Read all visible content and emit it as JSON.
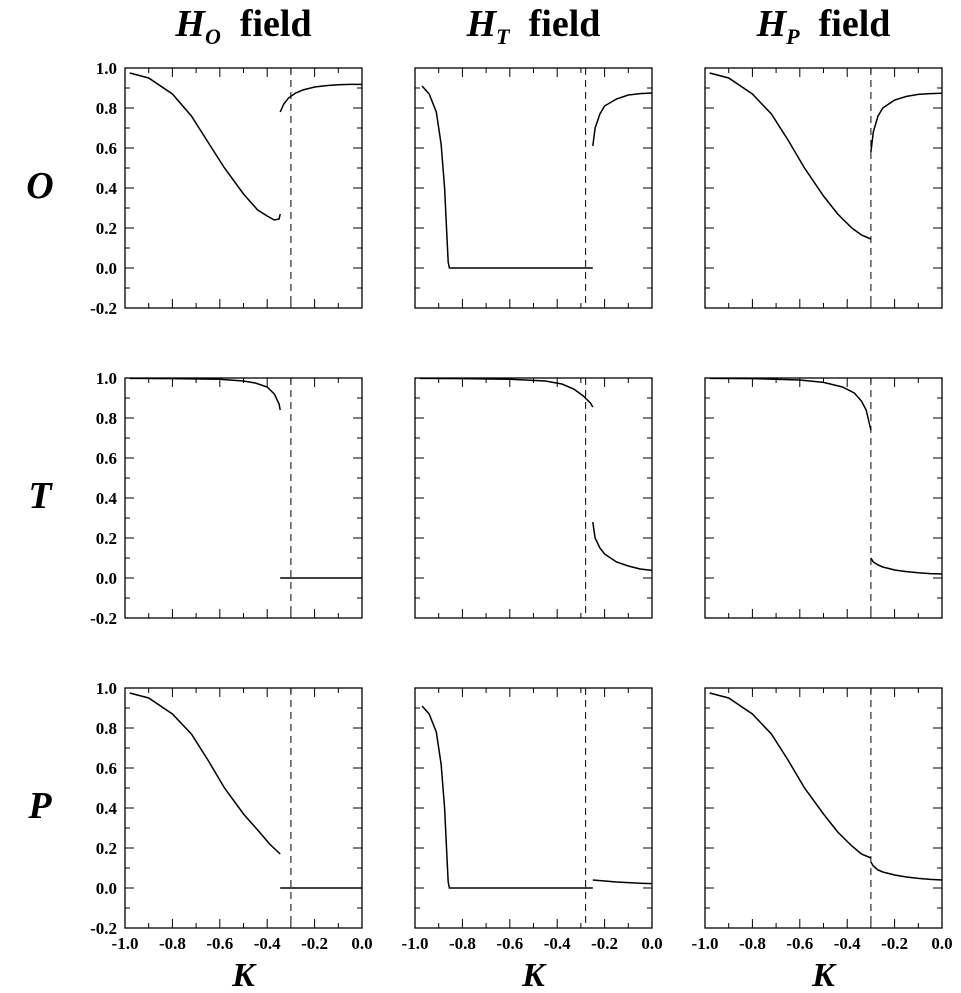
{
  "figure": {
    "column_titles": [
      {
        "main": "H",
        "sub": "O",
        "suffix": "field"
      },
      {
        "main": "H",
        "sub": "T",
        "suffix": "field"
      },
      {
        "main": "H",
        "sub": "P",
        "suffix": "field"
      }
    ],
    "row_labels": [
      "O",
      "T",
      "P"
    ],
    "x_axis_label": "K"
  },
  "chart_data": [
    {
      "type": "line",
      "row": "O",
      "column": "H_O field",
      "xlim": [
        -1.0,
        0.0
      ],
      "ylim": [
        -0.2,
        1.0
      ],
      "x_ticks": [
        "-1.0",
        "-0.8",
        "-0.6",
        "-0.4",
        "-0.2",
        "0.0"
      ],
      "y_ticks": [
        "-0.2",
        "0.0",
        "0.2",
        "0.4",
        "0.6",
        "0.8",
        "1.0"
      ],
      "dashed_vline_x": -0.3,
      "series": [
        {
          "x": [
            -0.98,
            -0.9,
            -0.8,
            -0.72,
            -0.65,
            -0.58,
            -0.5,
            -0.44,
            -0.4,
            -0.37,
            -0.35,
            -0.345
          ],
          "y": [
            0.975,
            0.95,
            0.87,
            0.76,
            0.63,
            0.5,
            0.37,
            0.29,
            0.26,
            0.24,
            0.245,
            0.27
          ]
        },
        {
          "x": [
            -0.345,
            -0.33,
            -0.31,
            -0.28,
            -0.25,
            -0.2,
            -0.15,
            -0.1,
            -0.05,
            0.0
          ],
          "y": [
            0.78,
            0.82,
            0.85,
            0.875,
            0.89,
            0.905,
            0.912,
            0.916,
            0.918,
            0.918
          ]
        }
      ]
    },
    {
      "type": "line",
      "row": "O",
      "column": "H_T field",
      "xlim": [
        -1.0,
        0.0
      ],
      "ylim": [
        -0.2,
        1.0
      ],
      "x_ticks": [
        "-1.0",
        "-0.8",
        "-0.6",
        "-0.4",
        "-0.2",
        "0.0"
      ],
      "y_ticks": [
        "-0.2",
        "0.0",
        "0.2",
        "0.4",
        "0.6",
        "0.8",
        "1.0"
      ],
      "dashed_vline_x": -0.28,
      "series": [
        {
          "x": [
            -0.97,
            -0.94,
            -0.91,
            -0.89,
            -0.875,
            -0.865,
            -0.86,
            -0.855,
            -0.8,
            -0.6,
            -0.4,
            -0.25
          ],
          "y": [
            0.91,
            0.87,
            0.78,
            0.62,
            0.4,
            0.15,
            0.03,
            0.0,
            0.0,
            0.0,
            0.0,
            0.0
          ]
        },
        {
          "x": [
            -0.25,
            -0.24,
            -0.22,
            -0.2,
            -0.15,
            -0.1,
            -0.05,
            0.0
          ],
          "y": [
            0.61,
            0.7,
            0.77,
            0.81,
            0.845,
            0.865,
            0.872,
            0.875
          ]
        }
      ]
    },
    {
      "type": "line",
      "row": "O",
      "column": "H_P field",
      "xlim": [
        -1.0,
        0.0
      ],
      "ylim": [
        -0.2,
        1.0
      ],
      "x_ticks": [
        "-1.0",
        "-0.8",
        "-0.6",
        "-0.4",
        "-0.2",
        "0.0"
      ],
      "y_ticks": [
        "-0.2",
        "0.0",
        "0.2",
        "0.4",
        "0.6",
        "0.8",
        "1.0"
      ],
      "dashed_vline_x": -0.3,
      "series": [
        {
          "x": [
            -0.98,
            -0.9,
            -0.8,
            -0.72,
            -0.65,
            -0.58,
            -0.5,
            -0.44,
            -0.38,
            -0.34,
            -0.3
          ],
          "y": [
            0.975,
            0.95,
            0.87,
            0.77,
            0.64,
            0.5,
            0.36,
            0.27,
            0.2,
            0.165,
            0.145
          ]
        },
        {
          "x": [
            -0.3,
            -0.29,
            -0.27,
            -0.25,
            -0.2,
            -0.15,
            -0.1,
            -0.05,
            0.0
          ],
          "y": [
            0.58,
            0.68,
            0.76,
            0.8,
            0.84,
            0.858,
            0.868,
            0.872,
            0.874
          ]
        }
      ]
    },
    {
      "type": "line",
      "row": "T",
      "column": "H_O field",
      "xlim": [
        -1.0,
        0.0
      ],
      "ylim": [
        -0.2,
        1.0
      ],
      "x_ticks": [
        "-1.0",
        "-0.8",
        "-0.6",
        "-0.4",
        "-0.2",
        "0.0"
      ],
      "y_ticks": [
        "-0.2",
        "0.0",
        "0.2",
        "0.4",
        "0.6",
        "0.8",
        "1.0"
      ],
      "dashed_vline_x": -0.3,
      "series": [
        {
          "x": [
            -0.98,
            -0.8,
            -0.6,
            -0.5,
            -0.45,
            -0.4,
            -0.37,
            -0.35,
            -0.345
          ],
          "y": [
            0.998,
            0.997,
            0.994,
            0.985,
            0.975,
            0.955,
            0.92,
            0.87,
            0.84
          ]
        },
        {
          "x": [
            -0.345,
            -0.2,
            0.0
          ],
          "y": [
            0.0,
            0.0,
            0.0
          ]
        }
      ]
    },
    {
      "type": "line",
      "row": "T",
      "column": "H_T field",
      "xlim": [
        -1.0,
        0.0
      ],
      "ylim": [
        -0.2,
        1.0
      ],
      "x_ticks": [
        "-1.0",
        "-0.8",
        "-0.6",
        "-0.4",
        "-0.2",
        "0.0"
      ],
      "y_ticks": [
        "-0.2",
        "0.0",
        "0.2",
        "0.4",
        "0.6",
        "0.8",
        "1.0"
      ],
      "dashed_vline_x": -0.28,
      "series": [
        {
          "x": [
            -0.98,
            -0.8,
            -0.6,
            -0.45,
            -0.38,
            -0.33,
            -0.29,
            -0.26,
            -0.25
          ],
          "y": [
            0.998,
            0.997,
            0.994,
            0.985,
            0.97,
            0.945,
            0.91,
            0.875,
            0.855
          ]
        },
        {
          "x": [
            -0.25,
            -0.24,
            -0.22,
            -0.2,
            -0.15,
            -0.1,
            -0.05,
            0.0
          ],
          "y": [
            0.28,
            0.2,
            0.15,
            0.12,
            0.08,
            0.06,
            0.045,
            0.038
          ]
        }
      ]
    },
    {
      "type": "line",
      "row": "T",
      "column": "H_P field",
      "xlim": [
        -1.0,
        0.0
      ],
      "ylim": [
        -0.2,
        1.0
      ],
      "x_ticks": [
        "-1.0",
        "-0.8",
        "-0.6",
        "-0.4",
        "-0.2",
        "0.0"
      ],
      "y_ticks": [
        "-0.2",
        "0.0",
        "0.2",
        "0.4",
        "0.6",
        "0.8",
        "1.0"
      ],
      "dashed_vline_x": -0.3,
      "series": [
        {
          "x": [
            -0.98,
            -0.8,
            -0.6,
            -0.5,
            -0.42,
            -0.37,
            -0.34,
            -0.32,
            -0.31,
            -0.3
          ],
          "y": [
            0.998,
            0.997,
            0.99,
            0.978,
            0.955,
            0.925,
            0.885,
            0.84,
            0.79,
            0.74
          ]
        },
        {
          "x": [
            -0.3,
            -0.29,
            -0.27,
            -0.25,
            -0.2,
            -0.15,
            -0.1,
            -0.05,
            0.0
          ],
          "y": [
            0.1,
            0.08,
            0.065,
            0.055,
            0.04,
            0.032,
            0.026,
            0.022,
            0.02
          ]
        }
      ]
    },
    {
      "type": "line",
      "row": "P",
      "column": "H_O field",
      "xlim": [
        -1.0,
        0.0
      ],
      "ylim": [
        -0.2,
        1.0
      ],
      "x_ticks": [
        "-1.0",
        "-0.8",
        "-0.6",
        "-0.4",
        "-0.2",
        "0.0"
      ],
      "y_ticks": [
        "-0.2",
        "0.0",
        "0.2",
        "0.4",
        "0.6",
        "0.8",
        "1.0"
      ],
      "dashed_vline_x": -0.3,
      "series": [
        {
          "x": [
            -0.98,
            -0.9,
            -0.8,
            -0.72,
            -0.65,
            -0.58,
            -0.5,
            -0.44,
            -0.39,
            -0.345
          ],
          "y": [
            0.975,
            0.95,
            0.87,
            0.77,
            0.64,
            0.5,
            0.37,
            0.29,
            0.22,
            0.17
          ]
        },
        {
          "x": [
            -0.345,
            -0.2,
            0.0
          ],
          "y": [
            0.0,
            0.0,
            0.0
          ]
        }
      ]
    },
    {
      "type": "line",
      "row": "P",
      "column": "H_T field",
      "xlim": [
        -1.0,
        0.0
      ],
      "ylim": [
        -0.2,
        1.0
      ],
      "x_ticks": [
        "-1.0",
        "-0.8",
        "-0.6",
        "-0.4",
        "-0.2",
        "0.0"
      ],
      "y_ticks": [
        "-0.2",
        "0.0",
        "0.2",
        "0.4",
        "0.6",
        "0.8",
        "1.0"
      ],
      "dashed_vline_x": -0.28,
      "series": [
        {
          "x": [
            -0.97,
            -0.94,
            -0.91,
            -0.89,
            -0.875,
            -0.865,
            -0.86,
            -0.855,
            -0.8,
            -0.6,
            -0.4,
            -0.25
          ],
          "y": [
            0.91,
            0.87,
            0.78,
            0.62,
            0.4,
            0.15,
            0.03,
            0.0,
            0.0,
            0.0,
            0.0,
            0.0
          ]
        },
        {
          "x": [
            -0.25,
            -0.2,
            -0.15,
            -0.1,
            -0.05,
            0.0
          ],
          "y": [
            0.04,
            0.035,
            0.03,
            0.027,
            0.024,
            0.022
          ]
        }
      ]
    },
    {
      "type": "line",
      "row": "P",
      "column": "H_P field",
      "xlim": [
        -1.0,
        0.0
      ],
      "ylim": [
        -0.2,
        1.0
      ],
      "x_ticks": [
        "-1.0",
        "-0.8",
        "-0.6",
        "-0.4",
        "-0.2",
        "0.0"
      ],
      "y_ticks": [
        "-0.2",
        "0.0",
        "0.2",
        "0.4",
        "0.6",
        "0.8",
        "1.0"
      ],
      "dashed_vline_x": -0.3,
      "series": [
        {
          "x": [
            -0.98,
            -0.9,
            -0.8,
            -0.72,
            -0.65,
            -0.58,
            -0.5,
            -0.44,
            -0.38,
            -0.34,
            -0.3
          ],
          "y": [
            0.975,
            0.95,
            0.87,
            0.77,
            0.64,
            0.5,
            0.37,
            0.28,
            0.21,
            0.17,
            0.15
          ]
        },
        {
          "x": [
            -0.3,
            -0.29,
            -0.27,
            -0.25,
            -0.2,
            -0.15,
            -0.1,
            -0.05,
            0.0
          ],
          "y": [
            0.13,
            0.11,
            0.09,
            0.08,
            0.065,
            0.055,
            0.048,
            0.043,
            0.04
          ]
        }
      ]
    }
  ]
}
